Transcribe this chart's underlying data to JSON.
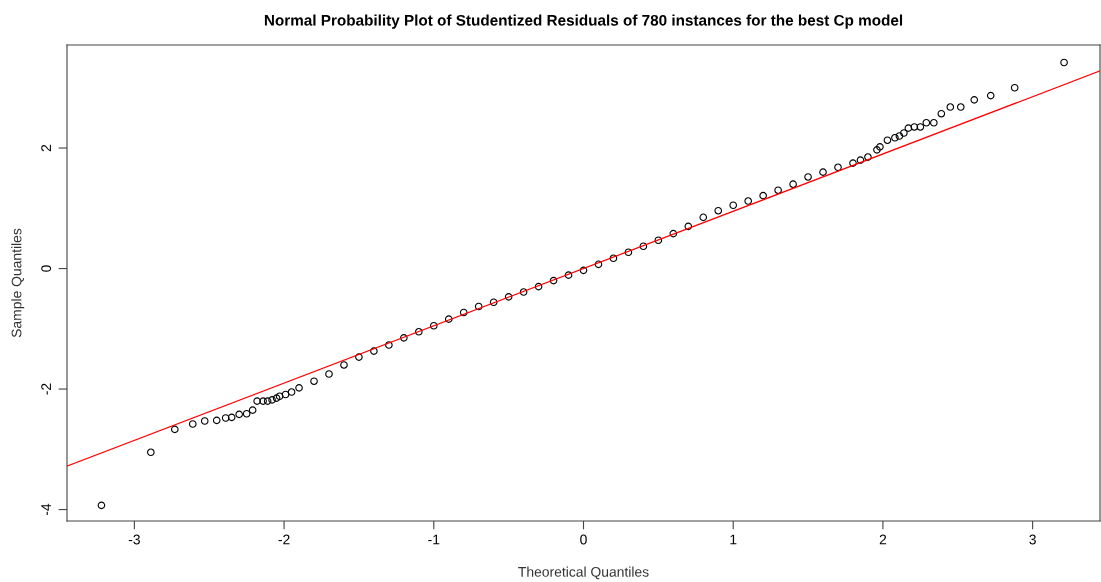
{
  "chart_data": {
    "type": "scatter",
    "title": "Normal Probability Plot of Studentized Residuals of 780 instances for the best Cp model",
    "xlabel": "Theoretical Quantiles",
    "ylabel": "Sample Quantiles",
    "xlim": [
      -3.45,
      3.45
    ],
    "ylim": [
      -4.19,
      3.71
    ],
    "xticks": [
      -3,
      -2,
      -1,
      0,
      1,
      2,
      3
    ],
    "yticks": [
      -4,
      -2,
      0,
      2
    ],
    "grid": false,
    "legend": false,
    "series": [
      {
        "marker": "circle",
        "color": "#000000",
        "x": [
          -3.22,
          -2.89,
          -2.73,
          -2.61,
          -2.53,
          -2.45,
          -2.39,
          -2.35,
          -2.3,
          -2.25,
          -2.21,
          -2.18,
          -2.14,
          -2.11,
          -2.08,
          -2.05,
          -2.03,
          -1.99,
          -1.95,
          -1.9,
          -1.8,
          -1.7,
          -1.6,
          -1.5,
          -1.4,
          -1.3,
          -1.2,
          -1.1,
          -1.0,
          -0.9,
          -0.8,
          -0.7,
          -0.6,
          -0.5,
          -0.4,
          -0.3,
          -0.2,
          -0.1,
          0,
          0.1,
          0.2,
          0.3,
          0.4,
          0.5,
          0.6,
          0.7,
          0.8,
          0.9,
          1.0,
          1.1,
          1.2,
          1.3,
          1.4,
          1.5,
          1.6,
          1.7,
          1.8,
          1.85,
          1.9,
          1.96,
          1.98,
          2.03,
          2.08,
          2.11,
          2.14,
          2.17,
          2.21,
          2.25,
          2.29,
          2.34,
          2.39,
          2.45,
          2.52,
          2.61,
          2.72,
          2.88,
          3.21
        ],
        "values": [
          -3.93,
          -3.05,
          -2.67,
          -2.58,
          -2.53,
          -2.52,
          -2.48,
          -2.47,
          -2.42,
          -2.41,
          -2.35,
          -2.2,
          -2.2,
          -2.2,
          -2.18,
          -2.15,
          -2.12,
          -2.09,
          -2.05,
          -1.98,
          -1.87,
          -1.75,
          -1.6,
          -1.47,
          -1.37,
          -1.27,
          -1.15,
          -1.05,
          -0.95,
          -0.84,
          -0.73,
          -0.63,
          -0.56,
          -0.47,
          -0.39,
          -0.3,
          -0.2,
          -0.11,
          -0.03,
          0.07,
          0.17,
          0.27,
          0.37,
          0.47,
          0.58,
          0.7,
          0.85,
          0.96,
          1.05,
          1.12,
          1.21,
          1.3,
          1.4,
          1.52,
          1.6,
          1.68,
          1.75,
          1.8,
          1.85,
          1.97,
          2.02,
          2.13,
          2.17,
          2.2,
          2.25,
          2.33,
          2.35,
          2.35,
          2.42,
          2.42,
          2.57,
          2.68,
          2.68,
          2.8,
          2.87,
          3.0,
          3.42
        ]
      },
      {
        "type": "line",
        "marker": "none",
        "color": "#ff0000",
        "x": [
          -3.45,
          3.45
        ],
        "values": [
          -3.28,
          3.28
        ]
      }
    ]
  }
}
